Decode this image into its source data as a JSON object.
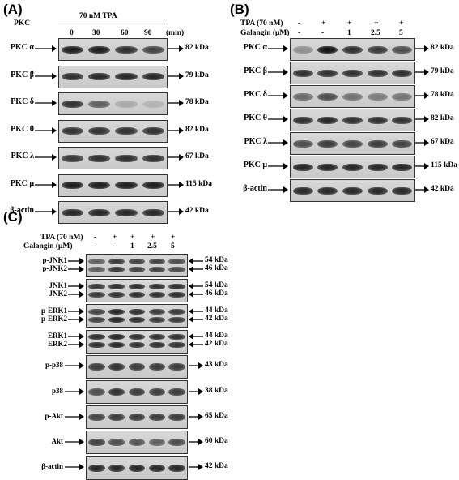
{
  "panel_a": {
    "letter": "(A)",
    "corner_label": "PKC",
    "treatment": "70 nM TPA",
    "timepoints": [
      "0",
      "30",
      "60",
      "90"
    ],
    "unit": "(min)",
    "rows": [
      {
        "label": "PKC α",
        "kda": "82 kDa",
        "intensity": [
          0.95,
          0.95,
          0.85,
          0.75
        ]
      },
      {
        "label": "PKC β",
        "kda": "79 kDa",
        "intensity": [
          0.85,
          0.9,
          0.9,
          0.9
        ]
      },
      {
        "label": "PKC δ",
        "kda": "78 kDa",
        "intensity": [
          0.85,
          0.6,
          0.2,
          0.15
        ]
      },
      {
        "label": "PKC θ",
        "kda": "82 kDa",
        "intensity": [
          0.85,
          0.85,
          0.85,
          0.85
        ]
      },
      {
        "label": "PKC λ",
        "kda": "67 kDa",
        "intensity": [
          0.8,
          0.85,
          0.85,
          0.85
        ]
      },
      {
        "label": "PKC μ",
        "kda": "115 kDa",
        "intensity": [
          0.95,
          0.95,
          0.95,
          0.95
        ]
      },
      {
        "label": "β-actin",
        "kda": "42 kDa",
        "intensity": [
          0.9,
          0.9,
          0.9,
          0.9
        ]
      }
    ]
  },
  "panel_b": {
    "letter": "(B)",
    "tpa_label": "TPA (70 nM)",
    "galangin_label": "Galangin (μM)",
    "tpa_signs": [
      "-",
      "+",
      "+",
      "+",
      "+"
    ],
    "galangin_values": [
      "-",
      "-",
      "1",
      "2.5",
      "5"
    ],
    "rows": [
      {
        "label": "PKC α",
        "kda": "82 kDa",
        "intensity": [
          0.35,
          1.0,
          0.85,
          0.8,
          0.7
        ]
      },
      {
        "label": "PKC β",
        "kda": "79 kDa",
        "intensity": [
          0.85,
          0.85,
          0.85,
          0.85,
          0.85
        ]
      },
      {
        "label": "PKC δ",
        "kda": "78 kDa",
        "intensity": [
          0.55,
          0.7,
          0.5,
          0.45,
          0.5
        ]
      },
      {
        "label": "PKC θ",
        "kda": "82 kDa",
        "intensity": [
          0.85,
          0.9,
          0.85,
          0.85,
          0.85
        ]
      },
      {
        "label": "PKC λ",
        "kda": "67 kDa",
        "intensity": [
          0.7,
          0.8,
          0.75,
          0.8,
          0.75
        ]
      },
      {
        "label": "PKC μ",
        "kda": "115 kDa",
        "intensity": [
          0.9,
          0.9,
          0.9,
          0.9,
          0.9
        ]
      },
      {
        "label": "β-actin",
        "kda": "42 kDa",
        "intensity": [
          0.9,
          0.9,
          0.9,
          0.9,
          0.9
        ]
      }
    ]
  },
  "panel_c": {
    "letter": "(C)",
    "tpa_label": "TPA (70 nM)",
    "galangin_label": "Galangin (μM)",
    "tpa_signs": [
      "-",
      "+",
      "+",
      "+",
      "+"
    ],
    "galangin_values": [
      "-",
      "-",
      "1",
      "2.5",
      "5"
    ],
    "rows": [
      {
        "labels": [
          "p-JNK1",
          "p-JNK2"
        ],
        "kdas": [
          "54 kDa",
          "46 kDa"
        ],
        "double": true,
        "intensity": [
          0.6,
          0.8,
          0.75,
          0.75,
          0.7
        ]
      },
      {
        "labels": [
          "JNK1",
          "JNK2"
        ],
        "kdas": [
          "54 kDa",
          "46 kDa"
        ],
        "double": true,
        "intensity": [
          0.8,
          0.85,
          0.85,
          0.85,
          0.85
        ]
      },
      {
        "labels": [
          "p-ERK1",
          "p-ERK2"
        ],
        "kdas": [
          "44 kDa",
          "42 kDa"
        ],
        "double": true,
        "intensity": [
          0.75,
          0.9,
          0.85,
          0.8,
          0.8
        ]
      },
      {
        "labels": [
          "ERK1",
          "ERK2"
        ],
        "kdas": [
          "44 kDa",
          "42 kDa"
        ],
        "double": true,
        "intensity": [
          0.85,
          0.9,
          0.85,
          0.85,
          0.85
        ]
      },
      {
        "labels": [
          "p-p38"
        ],
        "kdas": [
          "43 kDa"
        ],
        "double": false,
        "intensity": [
          0.8,
          0.85,
          0.8,
          0.8,
          0.8
        ]
      },
      {
        "labels": [
          "p38"
        ],
        "kdas": [
          "38 kDa"
        ],
        "double": false,
        "intensity": [
          0.7,
          0.85,
          0.8,
          0.8,
          0.8
        ]
      },
      {
        "labels": [
          "p-Akt"
        ],
        "kdas": [
          "65 kDa"
        ],
        "double": false,
        "intensity": [
          0.75,
          0.8,
          0.8,
          0.8,
          0.8
        ]
      },
      {
        "labels": [
          "Akt"
        ],
        "kdas": [
          "60 kDa"
        ],
        "double": false,
        "intensity": [
          0.75,
          0.7,
          0.65,
          0.6,
          0.7
        ]
      },
      {
        "labels": [
          "β-actin"
        ],
        "kdas": [
          "42 kDa"
        ],
        "double": false,
        "intensity": [
          0.9,
          0.9,
          0.9,
          0.9,
          0.9
        ]
      }
    ]
  }
}
